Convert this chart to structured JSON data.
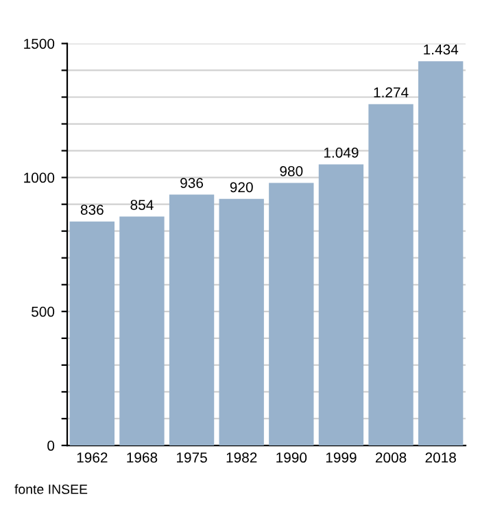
{
  "chart_data": {
    "type": "bar",
    "categories": [
      "1962",
      "1968",
      "1975",
      "1982",
      "1990",
      "1999",
      "2008",
      "2018"
    ],
    "values": [
      836,
      854,
      936,
      920,
      980,
      1049,
      1274,
      1434
    ],
    "value_labels": [
      "836",
      "854",
      "936",
      "920",
      "980",
      "1.049",
      "1.274",
      "1.434"
    ],
    "color": "#98b2cc",
    "ylim": [
      0,
      1500
    ],
    "yticks": [
      0,
      {
        "value": 100,
        "label": null
      },
      {
        "value": 200,
        "label": null
      },
      {
        "value": 300,
        "label": null
      },
      {
        "value": 400,
        "label": null
      },
      500,
      {
        "value": 600,
        "label": null
      },
      {
        "value": 700,
        "label": null
      },
      {
        "value": 800,
        "label": null
      },
      {
        "value": 900,
        "label": null
      },
      1000,
      {
        "value": 1100,
        "label": null
      },
      {
        "value": 1200,
        "label": null
      },
      {
        "value": 1300,
        "label": null
      },
      {
        "value": 1400,
        "label": null
      },
      1500
    ],
    "grid": "y",
    "annotations": [
      "fonte INSEE"
    ]
  }
}
